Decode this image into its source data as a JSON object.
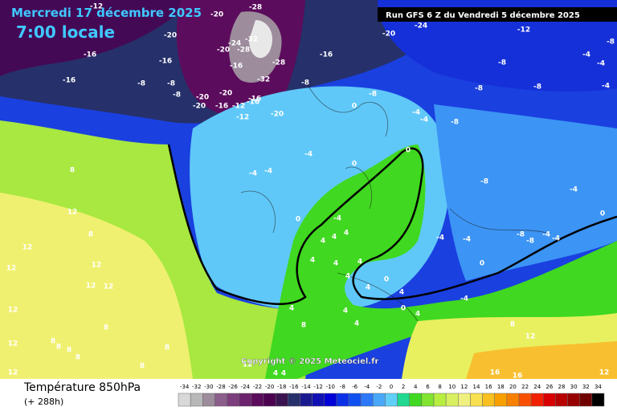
{
  "header": {
    "date": "Mercredi 17 décembre 2025",
    "time": "7:00 locale",
    "run": "Run GFS 6 Z du Vendredi 5 décembre 2025"
  },
  "copyright": "Copyright © 2025 Meteociel.fr",
  "footer": {
    "title": "Température 850hPa",
    "lead": "(+ 288h)"
  },
  "legend": {
    "ticks": [
      -34,
      -32,
      -30,
      -28,
      -26,
      -24,
      -22,
      -20,
      -18,
      -16,
      -14,
      -12,
      -10,
      -8,
      -6,
      -4,
      -2,
      0,
      2,
      4,
      6,
      8,
      10,
      12,
      14,
      16,
      18,
      20,
      22,
      24,
      26,
      28,
      30,
      32,
      34
    ],
    "colors": [
      "#d8d8d8",
      "#b8b8b8",
      "#9c8c9c",
      "#8c5e8c",
      "#7c3e7c",
      "#6c226c",
      "#5c0c5c",
      "#4c0050",
      "#3a1450",
      "#26306a",
      "#1a1a90",
      "#1010b4",
      "#0000d8",
      "#0a30e8",
      "#1050f0",
      "#2c78f8",
      "#4aa8f8",
      "#60d0f8",
      "#20d890",
      "#40d820",
      "#80e430",
      "#b8ee40",
      "#d8f060",
      "#f0f080",
      "#f8e050",
      "#f8c020",
      "#f8a000",
      "#f88000",
      "#f85000",
      "#f02000",
      "#d80000",
      "#b80000",
      "#980000",
      "#700000",
      "#000000"
    ]
  },
  "map_labels": [
    "-12",
    "-20",
    "-28",
    "-20",
    "-24",
    "-32",
    "-20",
    "-28",
    "-16",
    "-16",
    "-16",
    "-28",
    "-16",
    "-20",
    "-24",
    "-12",
    "-8",
    "-4",
    "-8",
    "-4",
    "-16",
    "-32",
    "-8",
    "-8",
    "-8",
    "-8",
    "-8",
    "-4",
    "-8",
    "-20",
    "-20",
    "-16",
    "-8",
    "-20",
    "-16",
    "-12",
    "-16",
    "0",
    "-4",
    "-4",
    "-8",
    "-12",
    "-20",
    "-4",
    "0",
    "0",
    "-4",
    "-4",
    "-8",
    "8",
    "-4",
    "0",
    "12",
    "0",
    "-4",
    "8",
    "4",
    "-4",
    "-4",
    "-8",
    "-8",
    "-4",
    "-4",
    "4",
    "4",
    "12",
    "12",
    "12",
    "4",
    "0",
    "4",
    "4",
    "12",
    "12",
    "0",
    "4",
    "4",
    "4",
    "12",
    "4",
    "4",
    "0",
    "4",
    "-4",
    "8",
    "8",
    "4",
    "8",
    "12",
    "8",
    "8",
    "8",
    "8",
    "8",
    "12",
    "4",
    "4",
    "16",
    "16",
    "12",
    "8",
    "12",
    "12"
  ]
}
